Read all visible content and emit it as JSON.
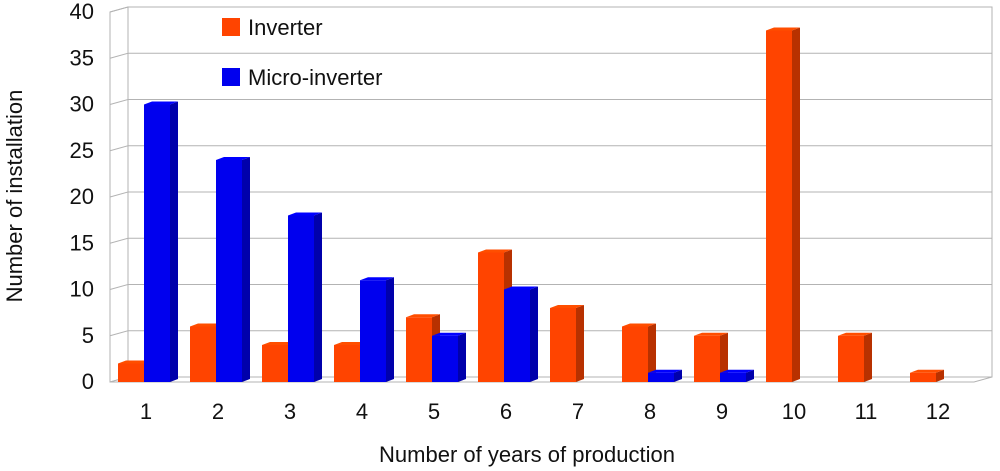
{
  "chart_data": {
    "type": "bar",
    "title": "",
    "xlabel": "Number of years of production",
    "ylabel": "Number of installation",
    "ylim": [
      0,
      40
    ],
    "yticks": [
      0,
      5,
      10,
      15,
      20,
      25,
      30,
      35,
      40
    ],
    "categories": [
      "1",
      "2",
      "3",
      "4",
      "5",
      "6",
      "7",
      "8",
      "9",
      "10",
      "11",
      "12"
    ],
    "grid": true,
    "legend_position": "top-left",
    "series": [
      {
        "name": "Inverter",
        "color": "#ff4400",
        "values": [
          2,
          6,
          4,
          4,
          7,
          14,
          8,
          6,
          5,
          38,
          5,
          1
        ]
      },
      {
        "name": "Micro-inverter",
        "color": "#0000ee",
        "values": [
          30,
          24,
          18,
          11,
          5,
          10,
          0,
          1,
          1,
          0,
          0,
          0
        ]
      }
    ]
  }
}
